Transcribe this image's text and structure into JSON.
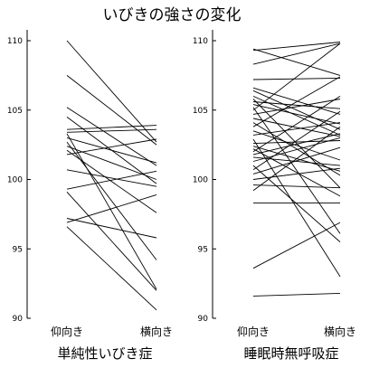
{
  "title": "いびきの強さの変化",
  "chart_data": [
    {
      "type": "line",
      "title": "単純性いびき症",
      "categories": [
        "仰向き",
        "横向き"
      ],
      "ylim": [
        90,
        110
      ],
      "yticks": [
        90,
        95,
        100,
        105,
        110
      ],
      "ytick_labels": [
        "90",
        "95",
        "100",
        "105",
        "110"
      ],
      "grid": false,
      "legend": "none",
      "series": [
        {
          "values": [
            110.0,
            102.7
          ]
        },
        {
          "values": [
            107.5,
            102.5
          ]
        },
        {
          "values": [
            105.2,
            101.0
          ]
        },
        {
          "values": [
            104.5,
            99.7
          ]
        },
        {
          "values": [
            103.6,
            103.9
          ]
        },
        {
          "values": [
            103.4,
            103.6
          ]
        },
        {
          "values": [
            103.3,
            92.1
          ]
        },
        {
          "values": [
            103.0,
            101.2
          ]
        },
        {
          "values": [
            102.7,
            94.2
          ]
        },
        {
          "values": [
            102.4,
            100.0
          ]
        },
        {
          "values": [
            102.1,
            97.6
          ]
        },
        {
          "values": [
            101.8,
            102.9
          ]
        },
        {
          "values": [
            100.7,
            99.5
          ]
        },
        {
          "values": [
            99.3,
            100.6
          ]
        },
        {
          "values": [
            99.1,
            92.0
          ]
        },
        {
          "values": [
            97.2,
            95.8
          ]
        },
        {
          "values": [
            96.9,
            98.9
          ]
        },
        {
          "values": [
            96.6,
            90.6
          ]
        }
      ]
    },
    {
      "type": "line",
      "title": "睡眠時無呼吸症",
      "categories": [
        "仰向き",
        "横向き"
      ],
      "ylim": [
        90,
        110
      ],
      "yticks": [
        90,
        95,
        100,
        105,
        110
      ],
      "ytick_labels": [
        "90",
        "95",
        "100",
        "105",
        "110"
      ],
      "grid": false,
      "legend": "none",
      "series": [
        {
          "values": [
            109.4,
            107.5
          ]
        },
        {
          "values": [
            109.3,
            109.9
          ]
        },
        {
          "values": [
            108.3,
            109.8
          ]
        },
        {
          "values": [
            107.2,
            107.3
          ]
        },
        {
          "values": [
            106.6,
            104.7
          ]
        },
        {
          "values": [
            106.4,
            103.6
          ]
        },
        {
          "values": [
            106.0,
            103.2
          ]
        },
        {
          "values": [
            105.8,
            99.4
          ]
        },
        {
          "values": [
            105.6,
            105.1
          ]
        },
        {
          "values": [
            105.4,
            104.0
          ]
        },
        {
          "values": [
            105.2,
            96.1
          ]
        },
        {
          "values": [
            105.0,
            109.8
          ]
        },
        {
          "values": [
            104.7,
            105.8
          ]
        },
        {
          "values": [
            104.4,
            103.1
          ]
        },
        {
          "values": [
            104.1,
            100.3
          ]
        },
        {
          "values": [
            103.8,
            107.4
          ]
        },
        {
          "values": [
            103.5,
            101.4
          ]
        },
        {
          "values": [
            103.2,
            104.1
          ]
        },
        {
          "values": [
            102.9,
            93.0
          ]
        },
        {
          "values": [
            102.6,
            102.8
          ]
        },
        {
          "values": [
            102.4,
            100.6
          ]
        },
        {
          "values": [
            102.2,
            98.8
          ]
        },
        {
          "values": [
            102.0,
            106.0
          ]
        },
        {
          "values": [
            101.8,
            103.3
          ]
        },
        {
          "values": [
            101.6,
            101.0
          ]
        },
        {
          "values": [
            101.3,
            103.0
          ]
        },
        {
          "values": [
            101.0,
            95.5
          ]
        },
        {
          "values": [
            100.7,
            104.9
          ]
        },
        {
          "values": [
            100.4,
            102.3
          ]
        },
        {
          "values": [
            100.0,
            100.8
          ]
        },
        {
          "values": [
            99.6,
            99.4
          ]
        },
        {
          "values": [
            99.2,
            103.8
          ]
        },
        {
          "values": [
            98.3,
            98.3
          ]
        },
        {
          "values": [
            93.6,
            96.9
          ]
        },
        {
          "values": [
            91.6,
            91.8
          ]
        }
      ]
    }
  ]
}
